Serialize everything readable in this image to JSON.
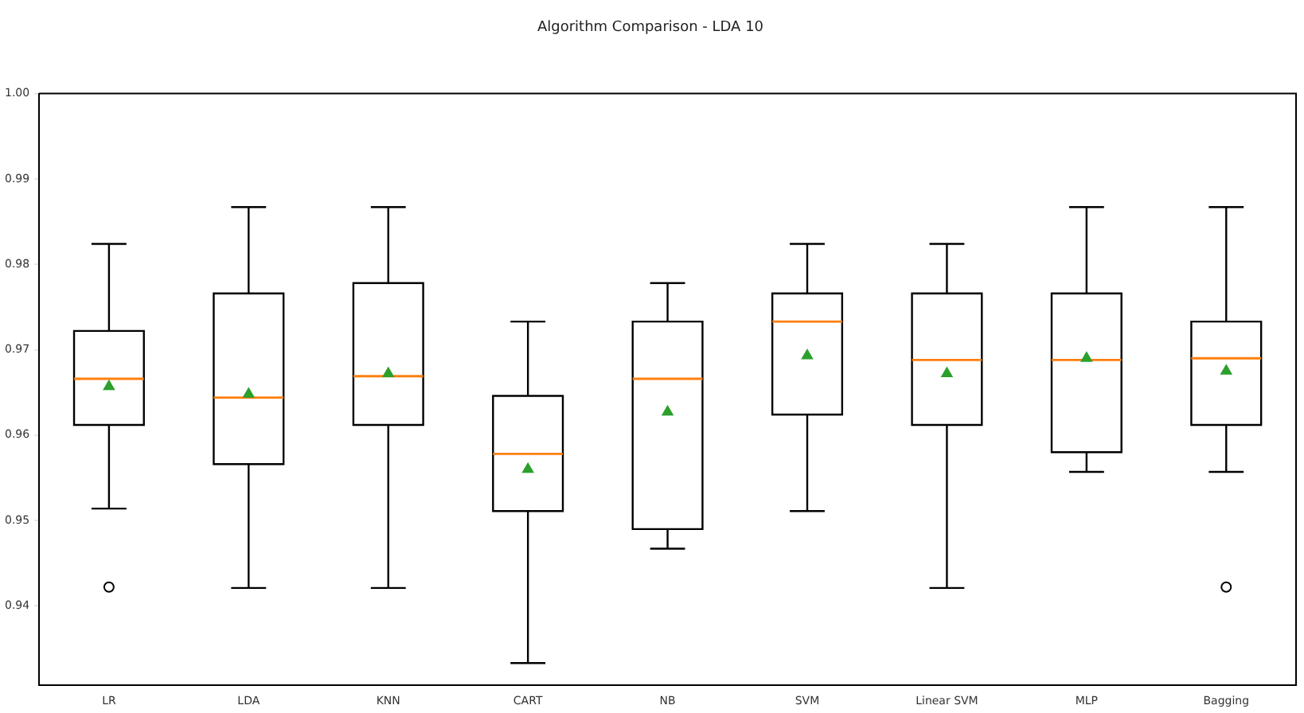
{
  "chart_data": {
    "type": "box",
    "title": "Algorithm Comparison - LDA 10",
    "categories": [
      "LR",
      "LDA",
      "KNN",
      "CART",
      "NB",
      "SVM",
      "Linear SVM",
      "MLP",
      "Bagging"
    ],
    "boxes": [
      {
        "low": 0.9514,
        "q1": 0.9612,
        "median": 0.9666,
        "q3": 0.9722,
        "high": 0.9824,
        "mean": 0.9657,
        "outliers": [
          0.9422
        ]
      },
      {
        "low": 0.9421,
        "q1": 0.9566,
        "median": 0.9644,
        "q3": 0.9766,
        "high": 0.9867,
        "mean": 0.9648
      },
      {
        "low": 0.9421,
        "q1": 0.9612,
        "median": 0.9669,
        "q3": 0.9778,
        "high": 0.9867,
        "mean": 0.9672
      },
      {
        "low": 0.9333,
        "q1": 0.9511,
        "median": 0.9578,
        "q3": 0.9646,
        "high": 0.9733,
        "mean": 0.956
      },
      {
        "low": 0.9467,
        "q1": 0.949,
        "median": 0.9666,
        "q3": 0.9733,
        "high": 0.9778,
        "mean": 0.9627
      },
      {
        "low": 0.9511,
        "q1": 0.9624,
        "median": 0.9733,
        "q3": 0.9766,
        "high": 0.9824,
        "mean": 0.9693
      },
      {
        "low": 0.9421,
        "q1": 0.9612,
        "median": 0.9688,
        "q3": 0.9766,
        "high": 0.9824,
        "mean": 0.9672
      },
      {
        "low": 0.9557,
        "q1": 0.958,
        "median": 0.9688,
        "q3": 0.9766,
        "high": 0.9867,
        "mean": 0.969
      },
      {
        "low": 0.9557,
        "q1": 0.9612,
        "median": 0.969,
        "q3": 0.9733,
        "high": 0.9867,
        "mean": 0.9675,
        "outliers": [
          0.9422
        ]
      }
    ],
    "color": "#000000",
    "ylim": [
      0.9307,
      1.0
    ],
    "yticks": [
      {
        "value": 0.94,
        "label": "0.94"
      },
      {
        "value": 0.95,
        "label": "0.95"
      },
      {
        "value": 0.96,
        "label": "0.96"
      },
      {
        "value": 0.97,
        "label": "0.97"
      },
      {
        "value": 0.98,
        "label": "0.98"
      },
      {
        "value": 0.99,
        "label": "0.99"
      },
      {
        "value": 1.0,
        "label": "1.00"
      }
    ],
    "grid": false,
    "legend": false
  }
}
